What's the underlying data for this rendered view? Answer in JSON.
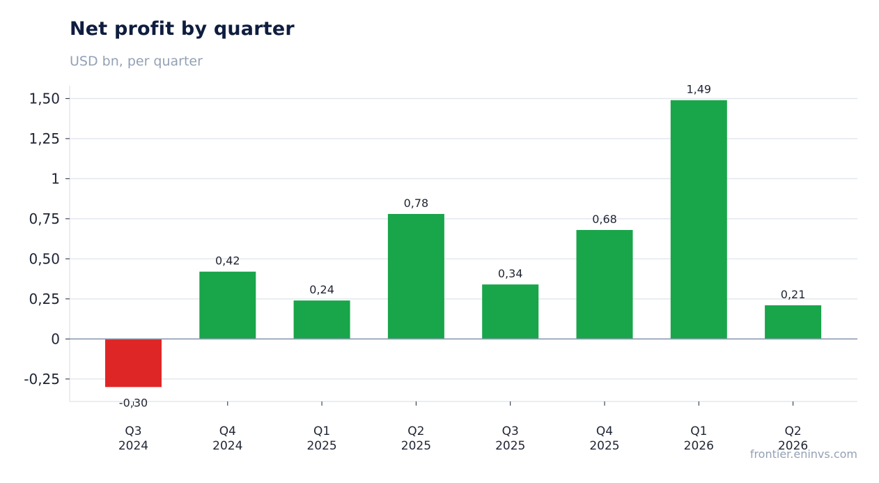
{
  "header": {
    "title": "Net profit by quarter",
    "subtitle": "USD bn, per quarter"
  },
  "footer": {
    "source": "frontier.eninvs.com"
  },
  "colors": {
    "positive": "#19a54a",
    "negative": "#df2626",
    "grid": "#e3e8ee",
    "zero_line": "#8c9bb0"
  },
  "chart_data": {
    "type": "bar",
    "title": "Net profit by quarter",
    "subtitle": "USD bn, per quarter",
    "xlabel": "",
    "ylabel": "",
    "categories": [
      [
        "Q3",
        "2024"
      ],
      [
        "Q4",
        "2024"
      ],
      [
        "Q1",
        "2025"
      ],
      [
        "Q2",
        "2025"
      ],
      [
        "Q3",
        "2025"
      ],
      [
        "Q4",
        "2025"
      ],
      [
        "Q1",
        "2026"
      ],
      [
        "Q2",
        "2026"
      ]
    ],
    "values": [
      -0.3,
      0.42,
      0.24,
      0.78,
      0.34,
      0.68,
      1.49,
      0.21
    ],
    "value_labels": [
      "-0,30",
      "0,42",
      "0,24",
      "0,78",
      "0,34",
      "0,68",
      "1,49",
      "0,21"
    ],
    "yticks": [
      -0.25,
      0,
      0.25,
      0.5,
      0.75,
      1,
      1.25,
      1.5
    ],
    "ytick_labels": [
      "-0,25",
      "0",
      "0,25",
      "0,50",
      "0,75",
      "1",
      "1,25",
      "1,50"
    ],
    "ylim": [
      -0.39,
      1.58
    ],
    "grid": true,
    "legend": "none"
  }
}
